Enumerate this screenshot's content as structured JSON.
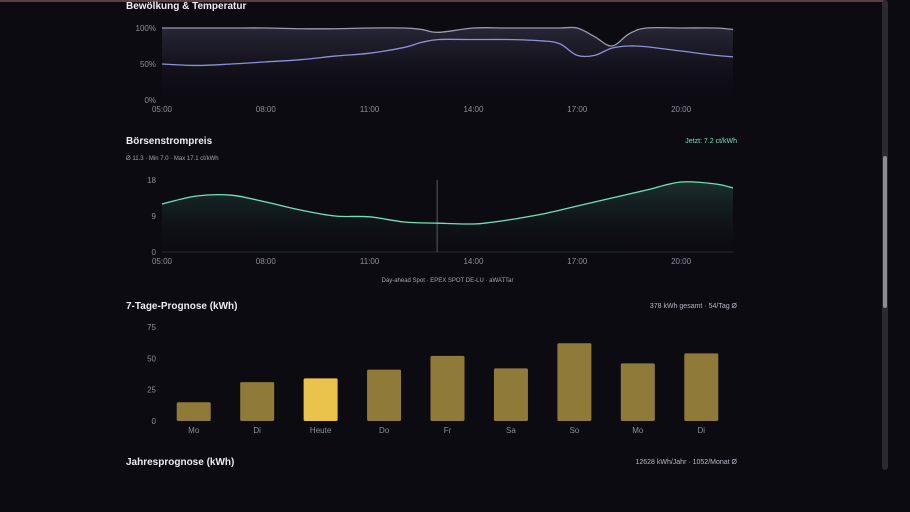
{
  "clouds": {
    "title": "Bewölkung & Temperatur",
    "y_ticks": [
      "100%",
      "50%",
      "0%"
    ],
    "x_ticks": [
      "05:00",
      "08:00",
      "11:00",
      "14:00",
      "17:00",
      "20:00"
    ]
  },
  "price": {
    "title": "Börsenstrompreis",
    "now_label": "Jetzt: 7.2 ct/kWh",
    "stats": "Ø 11.3 · Min 7.0 · Max 17.1 ct/kWh",
    "y_ticks": [
      "18",
      "9",
      "0"
    ],
    "x_ticks": [
      "05:00",
      "08:00",
      "11:00",
      "14:00",
      "17:00",
      "20:00"
    ],
    "source": "Day-ahead Spot · EPEX SPOT DE-LU · aWATTar"
  },
  "forecast": {
    "title": "7-Tage-Prognose (kWh)",
    "summary": "378 kWh gesamt · 54/Tag Ø",
    "y_ticks": [
      "75",
      "50",
      "25",
      "0"
    ]
  },
  "annual": {
    "title": "Jahresprognose (kWh)",
    "summary": "12628 kWh/Jahr · 1052/Monat Ø"
  },
  "chart_data": [
    {
      "type": "area",
      "title": "Bewölkung & Temperatur",
      "x_range": [
        5,
        21.5
      ],
      "ylim": [
        0,
        100
      ],
      "x_ticks": [
        "05:00",
        "08:00",
        "11:00",
        "14:00",
        "17:00",
        "20:00"
      ],
      "series": [
        {
          "color": "#8f90d8",
          "x": [
            5,
            6,
            7,
            8,
            9,
            10,
            11,
            12,
            12.5,
            13,
            14,
            15,
            16,
            16.5,
            17,
            17.5,
            18,
            18.5,
            19,
            20,
            21,
            21.5
          ],
          "y": [
            50,
            48,
            50,
            53,
            56,
            61,
            65,
            73,
            80,
            84,
            84,
            84,
            82,
            78,
            62,
            62,
            72,
            75,
            74,
            68,
            62,
            60
          ]
        },
        {
          "color": "#9d9aa8",
          "x": [
            5,
            6,
            7,
            8,
            9,
            10,
            11,
            12,
            12.5,
            13,
            14,
            15,
            16,
            16.5,
            17,
            17.5,
            18,
            18.5,
            19,
            20,
            21,
            21.5
          ],
          "y": [
            100,
            100,
            100,
            100,
            99,
            99,
            100,
            100,
            98,
            94,
            100,
            100,
            100,
            100,
            100,
            88,
            75,
            92,
            100,
            100,
            100,
            98
          ]
        }
      ]
    },
    {
      "type": "line",
      "title": "Börsenstrompreis",
      "x_range": [
        5,
        21.5
      ],
      "ylim": [
        0,
        18
      ],
      "y_ticks": [
        18,
        9,
        0
      ],
      "x_ticks": [
        "05:00",
        "08:00",
        "11:00",
        "14:00",
        "17:00",
        "20:00"
      ],
      "current_x": 12.95,
      "series": [
        {
          "color": "#6fe3b8",
          "x": [
            5,
            6,
            7,
            8,
            9,
            10,
            11,
            12,
            13,
            14,
            14.5,
            15,
            16,
            17,
            18,
            19,
            20,
            21,
            21.5
          ],
          "y": [
            12,
            14,
            14.2,
            12.5,
            10.5,
            9,
            8.8,
            7.5,
            7.2,
            7,
            7.4,
            8,
            9.5,
            11.5,
            13.5,
            15.5,
            17.5,
            17,
            16
          ]
        }
      ]
    },
    {
      "type": "bar",
      "title": "7-Tage-Prognose (kWh)",
      "ylim": [
        0,
        75
      ],
      "y_ticks": [
        75,
        50,
        25,
        0
      ],
      "categories": [
        "Mo",
        "Di",
        "Heute",
        "Do",
        "Fr",
        "Sa",
        "So",
        "Mo",
        "Di"
      ],
      "values": [
        15,
        31,
        34,
        41,
        52,
        42,
        62,
        46,
        54
      ],
      "colors": [
        "#8f7a3a",
        "#8f7a3a",
        "#e9c34c",
        "#8f7a3a",
        "#8f7a3a",
        "#8f7a3a",
        "#8f7a3a",
        "#8f7a3a",
        "#8f7a3a"
      ]
    }
  ]
}
